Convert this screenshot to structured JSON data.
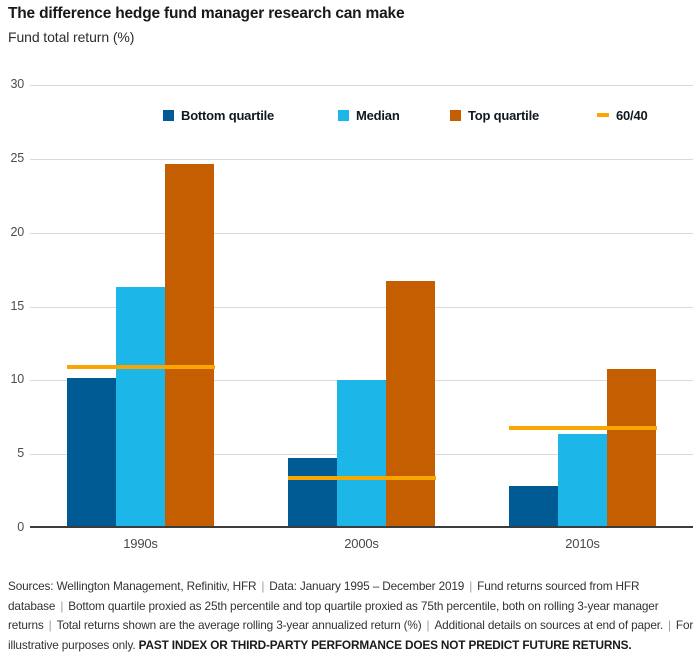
{
  "header": {
    "title": "The difference hedge fund manager research can make",
    "subtitle": "Fund total return (%)"
  },
  "chart_data": {
    "type": "bar",
    "title": "The difference hedge fund manager research can make",
    "ylabel": "Fund total return (%)",
    "categories": [
      "1990s",
      "2000s",
      "2010s"
    ],
    "series": [
      {
        "name": "Bottom quartile",
        "color": "#005A93",
        "values": [
          10.0,
          4.6,
          2.7
        ]
      },
      {
        "name": "Median",
        "color": "#1CB6E8",
        "values": [
          16.2,
          9.9,
          6.2
        ]
      },
      {
        "name": "Top quartile",
        "color": "#C45E00",
        "values": [
          24.5,
          16.6,
          10.6
        ]
      }
    ],
    "line_series": {
      "name": "60/40",
      "color": "#F9A602",
      "values": [
        10.9,
        3.4,
        6.8
      ]
    },
    "ylim": [
      0,
      30
    ],
    "yticks": [
      0,
      5,
      10,
      15,
      20,
      25,
      30
    ],
    "grid": true,
    "legend_position": "top"
  },
  "footer": {
    "separator": "|",
    "segments": [
      "Sources: Wellington Management, Refinitiv, HFR",
      "Data: January 1995 – December 2019",
      "Fund returns sourced from HFR database",
      "Bottom quartile proxied as 25th percentile and top quartile proxied as 75th percentile, both on rolling 3-year manager returns",
      "Total returns shown are the average rolling 3-year annualized return (%)",
      "Additional details on sources at end of paper.",
      "For illustrative purposes only."
    ],
    "bold_note": "PAST INDEX OR THIRD-PARTY PERFORMANCE DOES NOT PREDICT FUTURE RETURNS."
  },
  "colors": {
    "bottom_quartile": "#005A93",
    "median": "#1CB6E8",
    "top_quartile": "#C45E00",
    "line_60_40": "#F9A602",
    "gridline": "#d9d9d9",
    "axis_baseline": "#3c3c3c"
  }
}
